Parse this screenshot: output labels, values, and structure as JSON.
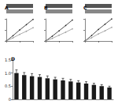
{
  "chart_data": [
    {
      "type": "line",
      "title": "A",
      "x": [
        0,
        0.25,
        0.5,
        0.75,
        1
      ],
      "series": [
        {
          "color": "#222222",
          "values": [
            0,
            0.24,
            0.5,
            0.74,
            0.98
          ]
        },
        {
          "color": "#999999",
          "values": [
            0,
            0.14,
            0.3,
            0.44,
            0.6
          ]
        }
      ],
      "xlim": [
        0,
        1
      ],
      "ylim": [
        0,
        1
      ],
      "xticks": [
        0,
        0.5,
        1
      ],
      "yticks": [
        0,
        0.5,
        1
      ],
      "tick_labels": false,
      "grid": false
    },
    {
      "type": "line",
      "title": "B",
      "x": [
        0,
        0.25,
        0.5,
        0.75,
        1
      ],
      "series": [
        {
          "color": "#222222",
          "values": [
            0,
            0.22,
            0.46,
            0.7,
            0.95
          ]
        },
        {
          "color": "#999999",
          "values": [
            0,
            0.12,
            0.26,
            0.4,
            0.55
          ]
        }
      ],
      "xlim": [
        0,
        1
      ],
      "ylim": [
        0,
        1
      ],
      "xticks": [
        0,
        0.5,
        1
      ],
      "yticks": [
        0,
        0.5,
        1
      ],
      "tick_labels": false,
      "grid": false
    },
    {
      "type": "line",
      "title": "C",
      "x": [
        0,
        0.25,
        0.5,
        0.75,
        1
      ],
      "series": [
        {
          "color": "#222222",
          "values": [
            0,
            0.25,
            0.52,
            0.76,
            1
          ]
        },
        {
          "color": "#999999",
          "values": [
            0,
            0.15,
            0.32,
            0.46,
            0.62
          ]
        }
      ],
      "xlim": [
        0,
        1
      ],
      "ylim": [
        0,
        1
      ],
      "xticks": [
        0,
        0.5,
        1
      ],
      "yticks": [
        0,
        0.5,
        1
      ],
      "tick_labels": false,
      "grid": false
    },
    {
      "type": "bar",
      "title": "D",
      "categories": [
        null,
        null,
        null,
        null,
        null,
        null,
        null,
        null,
        null,
        null,
        null,
        null,
        null
      ],
      "values": [
        1.0,
        0.92,
        0.88,
        0.85,
        0.8,
        0.76,
        0.72,
        0.68,
        0.64,
        0.6,
        0.55,
        0.5,
        0.45
      ],
      "errors": [
        0.12,
        0.1,
        0.1,
        0.09,
        0.09,
        0.08,
        0.08,
        0.08,
        0.07,
        0.07,
        0.06,
        0.06,
        0.05
      ],
      "color": "#1a1a1a",
      "ylim": [
        0,
        1.5
      ],
      "yticks": [
        0,
        0.5,
        {
          "value": 1,
          "label": "1.0"
        },
        {
          "value": 1.5,
          "label": "1.5"
        }
      ],
      "tick_labels": "y",
      "grid": false
    }
  ]
}
